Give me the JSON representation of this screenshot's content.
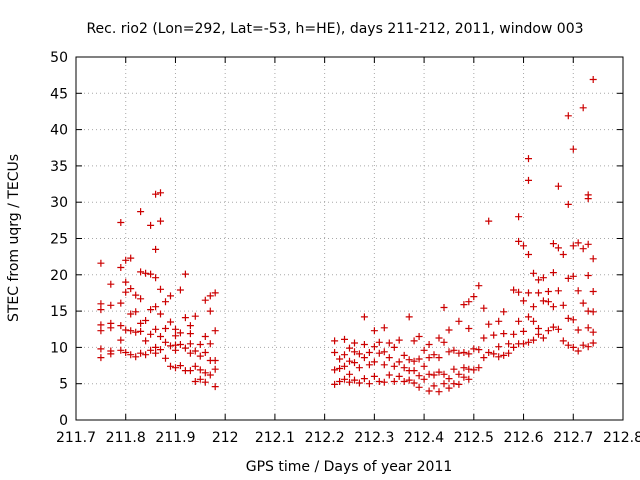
{
  "chart_data": {
    "type": "scatter",
    "title": "Rec. rio2 (Lon=292, Lat=-53, h=HE), days 211-212, 2011, window 003",
    "xlabel": "GPS time / Days of year 2011",
    "ylabel": "STEC from uqrg / TECUs",
    "xlim": [
      211.7,
      212.8
    ],
    "ylim": [
      0,
      50
    ],
    "x_ticks": [
      "211.7",
      "211.8",
      "211.9",
      "212",
      "212.1",
      "212.2",
      "212.3",
      "212.4",
      "212.5",
      "212.6",
      "212.7",
      "212.8"
    ],
    "y_ticks": [
      "0",
      "5",
      "10",
      "15",
      "20",
      "25",
      "30",
      "35",
      "40",
      "45",
      "50"
    ],
    "grid": true,
    "marker": "+",
    "color": "#cc0000",
    "series": [
      {
        "points": [
          [
            211.75,
            21.6
          ],
          [
            211.75,
            16.0
          ],
          [
            211.75,
            15.2
          ],
          [
            211.75,
            13.1
          ],
          [
            211.75,
            12.3
          ],
          [
            211.75,
            9.8
          ],
          [
            211.75,
            8.6
          ],
          [
            211.77,
            18.7
          ],
          [
            211.77,
            15.8
          ],
          [
            211.77,
            13.3
          ],
          [
            211.77,
            12.7
          ],
          [
            211.77,
            9.5
          ],
          [
            211.77,
            9.1
          ],
          [
            211.79,
            27.2
          ],
          [
            211.79,
            21.0
          ],
          [
            211.79,
            16.1
          ],
          [
            211.79,
            13.0
          ],
          [
            211.79,
            11.0
          ],
          [
            211.79,
            9.6
          ],
          [
            211.8,
            22.0
          ],
          [
            211.8,
            19.0
          ],
          [
            211.8,
            17.6
          ],
          [
            211.8,
            12.4
          ],
          [
            211.8,
            9.3
          ],
          [
            211.81,
            22.3
          ],
          [
            211.81,
            18.1
          ],
          [
            211.81,
            14.6
          ],
          [
            211.81,
            12.3
          ],
          [
            211.81,
            9.0
          ],
          [
            211.82,
            17.2
          ],
          [
            211.82,
            14.9
          ],
          [
            211.82,
            12.1
          ],
          [
            211.82,
            8.7
          ],
          [
            211.83,
            28.7
          ],
          [
            211.83,
            20.4
          ],
          [
            211.83,
            16.7
          ],
          [
            211.83,
            13.3
          ],
          [
            211.83,
            12.2
          ],
          [
            211.83,
            9.2
          ],
          [
            211.84,
            20.2
          ],
          [
            211.84,
            13.7
          ],
          [
            211.84,
            10.9
          ],
          [
            211.84,
            9.0
          ],
          [
            211.85,
            26.8
          ],
          [
            211.85,
            20.1
          ],
          [
            211.85,
            15.2
          ],
          [
            211.85,
            11.8
          ],
          [
            211.85,
            9.6
          ],
          [
            211.86,
            31.1
          ],
          [
            211.86,
            23.5
          ],
          [
            211.86,
            19.6
          ],
          [
            211.86,
            15.6
          ],
          [
            211.86,
            12.5
          ],
          [
            211.86,
            10.0
          ],
          [
            211.86,
            9.2
          ],
          [
            211.87,
            31.3
          ],
          [
            211.87,
            27.4
          ],
          [
            211.87,
            18.0
          ],
          [
            211.87,
            14.6
          ],
          [
            211.87,
            11.5
          ],
          [
            211.87,
            9.7
          ],
          [
            211.88,
            16.3
          ],
          [
            211.88,
            12.6
          ],
          [
            211.88,
            10.7
          ],
          [
            211.88,
            8.5
          ],
          [
            211.89,
            17.1
          ],
          [
            211.89,
            13.5
          ],
          [
            211.89,
            10.2
          ],
          [
            211.89,
            7.4
          ],
          [
            211.9,
            12.5
          ],
          [
            211.9,
            11.6
          ],
          [
            211.9,
            10.3
          ],
          [
            211.9,
            9.6
          ],
          [
            211.9,
            7.2
          ],
          [
            211.91,
            17.9
          ],
          [
            211.91,
            12.0
          ],
          [
            211.91,
            10.4
          ],
          [
            211.91,
            7.5
          ],
          [
            211.92,
            20.1
          ],
          [
            211.92,
            14.1
          ],
          [
            211.92,
            9.9
          ],
          [
            211.92,
            6.8
          ],
          [
            211.93,
            13.0
          ],
          [
            211.93,
            11.9
          ],
          [
            211.93,
            10.5
          ],
          [
            211.93,
            9.2
          ],
          [
            211.93,
            6.8
          ],
          [
            211.94,
            14.3
          ],
          [
            211.94,
            9.5
          ],
          [
            211.94,
            7.4
          ],
          [
            211.94,
            5.3
          ],
          [
            211.95,
            10.4
          ],
          [
            211.95,
            8.8
          ],
          [
            211.95,
            6.9
          ],
          [
            211.95,
            5.6
          ],
          [
            211.96,
            16.5
          ],
          [
            211.96,
            11.5
          ],
          [
            211.96,
            9.3
          ],
          [
            211.96,
            6.5
          ],
          [
            211.96,
            5.2
          ],
          [
            211.97,
            17.1
          ],
          [
            211.97,
            15.0
          ],
          [
            211.97,
            10.5
          ],
          [
            211.97,
            8.2
          ],
          [
            211.97,
            6.2
          ],
          [
            211.98,
            17.5
          ],
          [
            211.98,
            12.3
          ],
          [
            211.98,
            8.2
          ],
          [
            211.98,
            7.0
          ],
          [
            211.98,
            4.6
          ],
          [
            212.22,
            10.9
          ],
          [
            212.22,
            9.3
          ],
          [
            212.22,
            6.9
          ],
          [
            212.22,
            4.9
          ],
          [
            212.23,
            8.4
          ],
          [
            212.23,
            7.1
          ],
          [
            212.23,
            5.3
          ],
          [
            212.24,
            11.1
          ],
          [
            212.24,
            9.0
          ],
          [
            212.24,
            7.4
          ],
          [
            212.24,
            5.6
          ],
          [
            212.25,
            9.9
          ],
          [
            212.25,
            8.1
          ],
          [
            212.25,
            6.3
          ],
          [
            212.25,
            5.2
          ],
          [
            212.26,
            10.6
          ],
          [
            212.26,
            9.4
          ],
          [
            212.26,
            7.9
          ],
          [
            212.26,
            5.5
          ],
          [
            212.27,
            9.1
          ],
          [
            212.27,
            7.2
          ],
          [
            212.27,
            5.1
          ],
          [
            212.28,
            14.2
          ],
          [
            212.28,
            10.4
          ],
          [
            212.28,
            8.6
          ],
          [
            212.28,
            5.7
          ],
          [
            212.29,
            9.3
          ],
          [
            212.29,
            7.6
          ],
          [
            212.29,
            5.0
          ],
          [
            212.3,
            12.3
          ],
          [
            212.3,
            10.1
          ],
          [
            212.3,
            8.0
          ],
          [
            212.3,
            6.0
          ],
          [
            212.31,
            10.7
          ],
          [
            212.31,
            9.2
          ],
          [
            212.31,
            5.3
          ],
          [
            212.32,
            12.7
          ],
          [
            212.32,
            9.4
          ],
          [
            212.32,
            7.6
          ],
          [
            212.32,
            5.2
          ],
          [
            212.33,
            10.6
          ],
          [
            212.33,
            8.6
          ],
          [
            212.33,
            6.2
          ],
          [
            212.34,
            10.0
          ],
          [
            212.34,
            7.4
          ],
          [
            212.34,
            5.3
          ],
          [
            212.35,
            11.0
          ],
          [
            212.35,
            8.0
          ],
          [
            212.35,
            6.0
          ],
          [
            212.36,
            8.9
          ],
          [
            212.36,
            7.2
          ],
          [
            212.36,
            5.3
          ],
          [
            212.37,
            14.2
          ],
          [
            212.37,
            8.3
          ],
          [
            212.37,
            6.8
          ],
          [
            212.37,
            5.5
          ],
          [
            212.38,
            10.9
          ],
          [
            212.38,
            8.1
          ],
          [
            212.38,
            6.8
          ],
          [
            212.38,
            5.1
          ],
          [
            212.39,
            11.5
          ],
          [
            212.39,
            8.4
          ],
          [
            212.39,
            6.1
          ],
          [
            212.39,
            4.5
          ],
          [
            212.4,
            9.6
          ],
          [
            212.4,
            7.4
          ],
          [
            212.4,
            5.6
          ],
          [
            212.41,
            10.4
          ],
          [
            212.41,
            8.6
          ],
          [
            212.41,
            6.3
          ],
          [
            212.41,
            4.0
          ],
          [
            212.42,
            9.0
          ],
          [
            212.42,
            6.2
          ],
          [
            212.42,
            4.7
          ],
          [
            212.43,
            11.3
          ],
          [
            212.43,
            8.6
          ],
          [
            212.43,
            6.6
          ],
          [
            212.43,
            3.9
          ],
          [
            212.44,
            15.5
          ],
          [
            212.44,
            10.7
          ],
          [
            212.44,
            6.3
          ],
          [
            212.44,
            5.0
          ],
          [
            212.45,
            12.4
          ],
          [
            212.45,
            9.4
          ],
          [
            212.45,
            5.7
          ],
          [
            212.45,
            4.4
          ],
          [
            212.46,
            9.6
          ],
          [
            212.46,
            7.0
          ],
          [
            212.46,
            5.0
          ],
          [
            212.47,
            13.6
          ],
          [
            212.47,
            9.2
          ],
          [
            212.47,
            6.3
          ],
          [
            212.47,
            4.9
          ],
          [
            212.48,
            15.9
          ],
          [
            212.48,
            9.3
          ],
          [
            212.48,
            7.2
          ],
          [
            212.48,
            5.9
          ],
          [
            212.49,
            16.3
          ],
          [
            212.49,
            12.6
          ],
          [
            212.49,
            9.1
          ],
          [
            212.49,
            7.0
          ],
          [
            212.49,
            5.6
          ],
          [
            212.5,
            17.0
          ],
          [
            212.5,
            9.8
          ],
          [
            212.5,
            6.9
          ],
          [
            212.51,
            18.5
          ],
          [
            212.51,
            9.7
          ],
          [
            212.51,
            7.2
          ],
          [
            212.52,
            15.4
          ],
          [
            212.52,
            11.3
          ],
          [
            212.52,
            8.6
          ],
          [
            212.53,
            27.4
          ],
          [
            212.53,
            13.2
          ],
          [
            212.53,
            9.3
          ],
          [
            212.54,
            11.7
          ],
          [
            212.54,
            9.1
          ],
          [
            212.55,
            13.6
          ],
          [
            212.55,
            10.1
          ],
          [
            212.55,
            8.7
          ],
          [
            212.56,
            14.9
          ],
          [
            212.56,
            11.9
          ],
          [
            212.56,
            8.9
          ],
          [
            212.57,
            10.5
          ],
          [
            212.57,
            9.2
          ],
          [
            212.58,
            17.9
          ],
          [
            212.58,
            11.8
          ],
          [
            212.58,
            10.0
          ],
          [
            212.59,
            28.0
          ],
          [
            212.59,
            24.6
          ],
          [
            212.59,
            17.6
          ],
          [
            212.59,
            13.6
          ],
          [
            212.59,
            10.5
          ],
          [
            212.6,
            24.0
          ],
          [
            212.6,
            16.4
          ],
          [
            212.6,
            12.2
          ],
          [
            212.6,
            10.5
          ],
          [
            212.61,
            36.0
          ],
          [
            212.61,
            33.0
          ],
          [
            212.61,
            22.8
          ],
          [
            212.61,
            17.5
          ],
          [
            212.61,
            14.2
          ],
          [
            212.61,
            10.7
          ],
          [
            212.62,
            20.2
          ],
          [
            212.62,
            15.6
          ],
          [
            212.62,
            13.6
          ],
          [
            212.62,
            11.0
          ],
          [
            212.63,
            19.3
          ],
          [
            212.63,
            17.5
          ],
          [
            212.63,
            12.6
          ],
          [
            212.63,
            11.8
          ],
          [
            212.64,
            19.6
          ],
          [
            212.64,
            16.4
          ],
          [
            212.64,
            11.3
          ],
          [
            212.65,
            17.7
          ],
          [
            212.65,
            16.3
          ],
          [
            212.65,
            12.3
          ],
          [
            212.66,
            24.3
          ],
          [
            212.66,
            20.3
          ],
          [
            212.66,
            15.6
          ],
          [
            212.66,
            12.8
          ],
          [
            212.67,
            32.2
          ],
          [
            212.67,
            23.7
          ],
          [
            212.67,
            17.8
          ],
          [
            212.67,
            12.5
          ],
          [
            212.68,
            22.8
          ],
          [
            212.68,
            15.8
          ],
          [
            212.68,
            10.9
          ],
          [
            212.69,
            41.9
          ],
          [
            212.69,
            29.7
          ],
          [
            212.69,
            19.5
          ],
          [
            212.69,
            14.0
          ],
          [
            212.69,
            10.3
          ],
          [
            212.7,
            37.3
          ],
          [
            212.7,
            24.0
          ],
          [
            212.7,
            19.8
          ],
          [
            212.7,
            13.8
          ],
          [
            212.7,
            10.0
          ],
          [
            212.71,
            24.4
          ],
          [
            212.71,
            17.8
          ],
          [
            212.71,
            12.4
          ],
          [
            212.71,
            9.5
          ],
          [
            212.72,
            43.0
          ],
          [
            212.72,
            23.6
          ],
          [
            212.72,
            16.1
          ],
          [
            212.72,
            10.3
          ],
          [
            212.73,
            31.0
          ],
          [
            212.73,
            30.5
          ],
          [
            212.73,
            24.2
          ],
          [
            212.73,
            19.9
          ],
          [
            212.73,
            15.0
          ],
          [
            212.73,
            12.7
          ],
          [
            212.73,
            10.1
          ],
          [
            212.74,
            46.9
          ],
          [
            212.74,
            22.2
          ],
          [
            212.74,
            17.7
          ],
          [
            212.74,
            14.9
          ],
          [
            212.74,
            12.1
          ],
          [
            212.74,
            10.6
          ]
        ]
      }
    ]
  }
}
